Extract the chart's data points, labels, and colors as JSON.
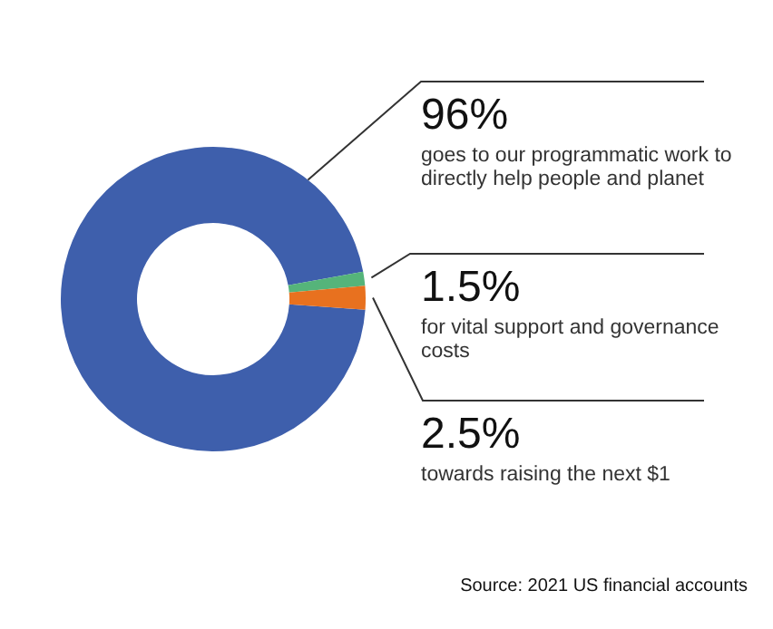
{
  "chart_data": {
    "type": "donut",
    "categories": [
      "goes to our programmatic work to directly help people and planet",
      "for vital support and governance costs",
      "towards raising the next $1"
    ],
    "values": [
      96,
      1.5,
      2.5
    ],
    "value_labels": [
      "96%",
      "1.5%",
      "2.5%"
    ],
    "colors": [
      "#3e5fac",
      "#55b47a",
      "#e8711f"
    ],
    "legend": false,
    "annotations": [
      "Source: 2021 US financial accounts"
    ]
  }
}
